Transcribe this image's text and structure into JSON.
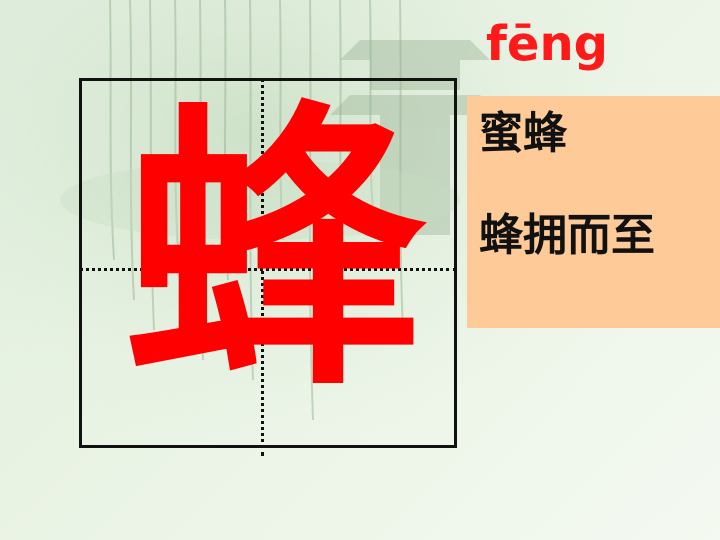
{
  "slide": {
    "pinyin": "fēng",
    "character": "蜂",
    "words": [
      "蜜蜂",
      "蜂拥而至"
    ],
    "colors": {
      "pinyin": "#ff1a1a",
      "character": "#ff0000",
      "panel": "#fecb98",
      "grid": "#111111",
      "background": "#e3f0df"
    }
  }
}
